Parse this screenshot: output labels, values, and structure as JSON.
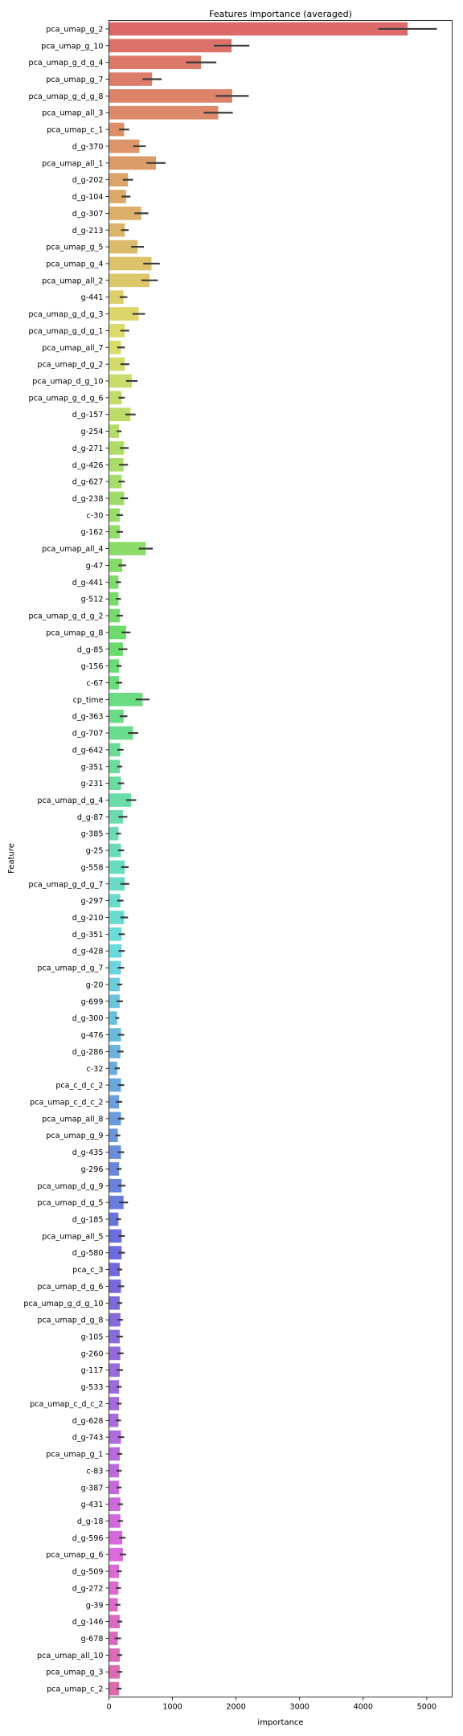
{
  "chart_data": {
    "type": "bar",
    "orientation": "horizontal",
    "title": "Features importance (averaged)",
    "xlabel": "importance",
    "ylabel": "Feature",
    "xlim": [
      0,
      5400
    ],
    "xticks": [
      0,
      1000,
      2000,
      3000,
      4000,
      5000
    ],
    "grid": false,
    "palette": "husl",
    "categories": [
      "pca_umap_g_2",
      "pca_umap_g_10",
      "pca_umap_g_d_g_4",
      "pca_umap_g_7",
      "pca_umap_g_d_g_8",
      "pca_umap_all_3",
      "pca_umap_c_1",
      "d_g-370",
      "pca_umap_all_1",
      "d_g-202",
      "d_g-104",
      "d_g-307",
      "d_g-213",
      "pca_umap_g_5",
      "pca_umap_g_4",
      "pca_umap_all_2",
      "g-441",
      "pca_umap_g_d_g_3",
      "pca_umap_g_d_g_1",
      "pca_umap_all_7",
      "pca_umap_d_g_2",
      "pca_umap_d_g_10",
      "pca_umap_g_d_g_6",
      "d_g-157",
      "g-254",
      "d_g-271",
      "d_g-426",
      "d_g-627",
      "d_g-238",
      "c-30",
      "g-162",
      "pca_umap_all_4",
      "g-47",
      "d_g-441",
      "g-512",
      "pca_umap_g_d_g_2",
      "pca_umap_g_8",
      "d_g-85",
      "g-156",
      "c-67",
      "cp_time",
      "d_g-363",
      "d_g-707",
      "d_g-642",
      "g-351",
      "g-231",
      "pca_umap_d_g_4",
      "d_g-87",
      "g-385",
      "g-25",
      "g-558",
      "pca_umap_g_d_g_7",
      "g-297",
      "d_g-210",
      "d_g-351",
      "d_g-428",
      "pca_umap_d_g_7",
      "g-20",
      "g-699",
      "d_g-300",
      "g-476",
      "d_g-286",
      "c-32",
      "pca_c_d_c_2",
      "pca_umap_c_d_c_2",
      "pca_umap_all_8",
      "pca_umap_g_9",
      "d_g-435",
      "g-296",
      "pca_umap_d_g_9",
      "pca_umap_d_g_5",
      "d_g-185",
      "pca_umap_all_5",
      "d_g-580",
      "pca_c_3",
      "pca_umap_d_g_6",
      "pca_umap_g_d_g_10",
      "pca_umap_d_g_8",
      "g-105",
      "g-260",
      "g-117",
      "g-533",
      "pca_umap_c_d_c_2",
      "d_g-628",
      "d_g-743",
      "pca_umap_g_1",
      "c-83",
      "g-387",
      "g-431",
      "d_g-18",
      "d_g-596",
      "pca_umap_g_6",
      "d_g-509",
      "d_g-272",
      "g-39",
      "d_g-146",
      "g-678",
      "pca_umap_all_10",
      "pca_umap_g_3",
      "pca_umap_c_2"
    ],
    "values": [
      4700,
      1930,
      1450,
      680,
      1940,
      1720,
      240,
      480,
      740,
      300,
      270,
      510,
      250,
      450,
      670,
      640,
      230,
      470,
      250,
      190,
      250,
      360,
      200,
      340,
      160,
      240,
      230,
      200,
      240,
      170,
      170,
      580,
      210,
      150,
      150,
      170,
      270,
      220,
      160,
      160,
      530,
      230,
      380,
      180,
      170,
      190,
      350,
      220,
      150,
      190,
      250,
      250,
      180,
      240,
      200,
      200,
      190,
      170,
      170,
      130,
      190,
      180,
      130,
      190,
      160,
      190,
      140,
      190,
      160,
      200,
      230,
      150,
      200,
      200,
      170,
      190,
      170,
      180,
      170,
      180,
      170,
      160,
      160,
      150,
      190,
      170,
      160,
      160,
      180,
      180,
      210,
      220,
      160,
      150,
      140,
      170,
      140,
      170,
      170,
      160
    ],
    "errors": [
      460,
      280,
      240,
      150,
      260,
      230,
      80,
      100,
      150,
      80,
      70,
      110,
      60,
      100,
      130,
      130,
      60,
      100,
      70,
      60,
      70,
      90,
      50,
      80,
      40,
      70,
      70,
      50,
      60,
      50,
      50,
      110,
      60,
      40,
      40,
      50,
      70,
      70,
      40,
      50,
      110,
      60,
      80,
      50,
      40,
      50,
      80,
      70,
      40,
      50,
      60,
      70,
      50,
      60,
      50,
      50,
      50,
      40,
      50,
      30,
      50,
      50,
      40,
      50,
      50,
      50,
      40,
      50,
      40,
      60,
      70,
      40,
      50,
      50,
      40,
      50,
      40,
      40,
      50,
      50,
      50,
      40,
      40,
      40,
      50,
      40,
      40,
      40,
      40,
      40,
      50,
      50,
      40,
      40,
      40,
      40,
      50,
      40,
      40,
      40
    ]
  }
}
